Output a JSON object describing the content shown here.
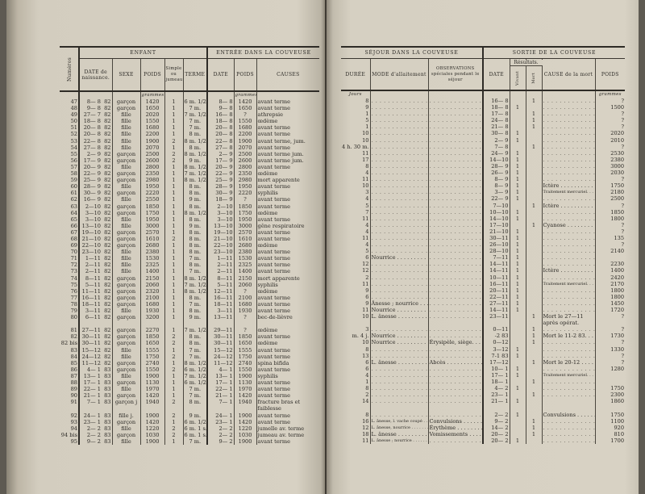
{
  "left_table": {
    "group_headers": {
      "enfant": "ENFANT",
      "entree": "ENTRÉE DANS LA COUVEUSE"
    },
    "columns": {
      "numero": "Numéros",
      "date_naissance": "DATE de naissance.",
      "sexe": "SEXE",
      "poids": "POIDS",
      "simple_jumeau": "Simple ou jumeau",
      "terme": "TERME",
      "date_entree": "DATE",
      "poids_entree": "POIDS",
      "causes": "CAUSES"
    },
    "units": {
      "poids": "grammes",
      "poids_entree": "grammes"
    },
    "rows": [
      [
        "47",
        "8— 8",
        "82",
        "garçon",
        "1420",
        "1",
        "6 m. 1/2",
        "8— 8",
        "1420",
        "avant terme"
      ],
      [
        "48",
        "9— 8",
        "82",
        "garçon",
        "1650",
        "1",
        "7 m.",
        "9— 8",
        "1650",
        "avant terme"
      ],
      [
        "49",
        "27— 7",
        "82",
        "fille",
        "2020",
        "1",
        "7 m. 1/2",
        "16— 8",
        "?",
        "athrepsie"
      ],
      [
        "50",
        "18— 8",
        "82",
        "fille",
        "1550",
        "1",
        "7 m.",
        "18— 8",
        "1550",
        "œdème"
      ],
      [
        "51",
        "20— 8",
        "82",
        "fille",
        "1680",
        "1",
        "7 m.",
        "20— 8",
        "1680",
        "avant terme"
      ],
      [
        "52",
        "20— 8",
        "82",
        "fille",
        "2200",
        "1",
        "8 m.",
        "20— 8",
        "2200",
        "avant terme"
      ],
      [
        "53",
        "22— 8",
        "82",
        "fille",
        "1900",
        "2",
        "8 m. 1/2",
        "22— 8",
        "1900",
        "avant terme, jum."
      ],
      [
        "54",
        "27— 8",
        "82",
        "fille",
        "2070",
        "1",
        "8 m.",
        "27— 8",
        "2070",
        "avant terme"
      ],
      [
        "55",
        "2— 9",
        "82",
        "garçon",
        "2500",
        "2",
        "8 m. 1/2",
        "2— 9",
        "2500",
        "avant terme jum."
      ],
      [
        "56",
        "17— 9",
        "82",
        "garçon",
        "2600",
        "2",
        "9 m.",
        "17— 9",
        "2600",
        "avant terme jum."
      ],
      [
        "57",
        "20— 9",
        "82",
        "fille",
        "2800",
        "1",
        "8 m. 1/2",
        "20— 9",
        "2800",
        "avant terme"
      ],
      [
        "58",
        "22— 9",
        "82",
        "garçon",
        "2350",
        "1",
        "7 m. 1/2",
        "22— 9",
        "2350",
        "œdème"
      ],
      [
        "59",
        "25— 9",
        "82",
        "garçon",
        "2980",
        "1",
        "8 m. 1/2",
        "25— 9",
        "2980",
        "mort apparente"
      ],
      [
        "60",
        "28— 9",
        "82",
        "fille",
        "1950",
        "1",
        "8 m.",
        "28— 9",
        "1950",
        "avant terme"
      ],
      [
        "61",
        "30— 9",
        "82",
        "garçon",
        "2220",
        "1",
        "8 m.",
        "30— 9",
        "2220",
        "syphilis"
      ],
      [
        "62",
        "16— 9",
        "82",
        "fille",
        "2550",
        "1",
        "9 m.",
        "18— 9",
        "?",
        "avant terme"
      ],
      [
        "63",
        "2—10",
        "82",
        "garçon",
        "1850",
        "1",
        "8 m.",
        "2—10",
        "1850",
        "avant terme"
      ],
      [
        "64",
        "3—10",
        "82",
        "garçon",
        "1750",
        "1",
        "8 m. 1/2",
        "3—10",
        "1750",
        "œdème"
      ],
      [
        "65",
        "3—10",
        "82",
        "fille",
        "1950",
        "1",
        "8 m.",
        "3—10",
        "1950",
        "avant terme"
      ],
      [
        "66",
        "13—10",
        "82",
        "fille",
        "3000",
        "1",
        "9 m.",
        "13—10",
        "3000",
        "gêne respiratoire"
      ],
      [
        "67",
        "19—10",
        "82",
        "garçon",
        "2570",
        "1",
        "8 m.",
        "19—10",
        "2570",
        "avant terme"
      ],
      [
        "68",
        "21—10",
        "82",
        "garçon",
        "1610",
        "2",
        "8 m.",
        "21—10",
        "1610",
        "avant terme"
      ],
      [
        "69",
        "22—10",
        "82",
        "garçon",
        "2680",
        "1",
        "8 m.",
        "22—10",
        "2680",
        "œdème"
      ],
      [
        "70",
        "23—10",
        "82",
        "fille",
        "2380",
        "1",
        "8 m.",
        "23—10",
        "2380",
        "avant terme"
      ],
      [
        "71",
        "1—11",
        "82",
        "fille",
        "1530",
        "1",
        "7 m.",
        "1—11",
        "1530",
        "avant terme"
      ],
      [
        "72",
        "2—11",
        "82",
        "fille",
        "2325",
        "1",
        "8 m.",
        "2—11",
        "2325",
        "avant terme"
      ],
      [
        "73",
        "2—11",
        "82",
        "fille",
        "1400",
        "1",
        "7 m.",
        "2—11",
        "1400",
        "avant terme"
      ],
      [
        "74",
        "8—11",
        "82",
        "garçon",
        "2150",
        "1",
        "8 m. 1/2",
        "8—11",
        "2150",
        "mort apparente"
      ],
      [
        "75",
        "5—11",
        "82",
        "garçon",
        "2060",
        "1",
        "7 m. 1/2",
        "5—11",
        "2060",
        "syphilis"
      ],
      [
        "76",
        "11—11",
        "82",
        "garçon",
        "2320",
        "1",
        "8 m. 1/2",
        "12—11",
        "?",
        "œdème"
      ],
      [
        "77",
        "16—11",
        "82",
        "garçon",
        "2100",
        "1",
        "8 m.",
        "16—11",
        "2100",
        "avant terme"
      ],
      [
        "78",
        "18—11",
        "82",
        "garçon",
        "1680",
        "1",
        "7 m.",
        "18—11",
        "1680",
        "avant terme"
      ],
      [
        "79",
        "3—11",
        "82",
        "fille",
        "1930",
        "1",
        "8 m.",
        "3—11",
        "1930",
        "avant terme"
      ],
      [
        "80",
        "6—11",
        "82",
        "garçon",
        "3200",
        "1",
        "9 m.",
        "13—11",
        "?",
        "bec-de-lièvre"
      ],
      [
        "81",
        "27—11",
        "82",
        "garçon",
        "2270",
        "1",
        "7 m. 1/2",
        "29—11",
        "?",
        "œdème"
      ],
      [
        "82",
        "30—11",
        "82",
        "garçon",
        "1850",
        "2",
        "8 m.",
        "30—11",
        "1850",
        "avant terme"
      ],
      [
        "82 bis",
        "30—11",
        "82",
        "garçon",
        "1650",
        "2",
        "8 m.",
        "30—11",
        "1650",
        "œdème"
      ],
      [
        "83",
        "15—12",
        "82",
        "fille",
        "1555",
        "1",
        "7 m.",
        "15—12",
        "1555",
        "avant terme"
      ],
      [
        "84",
        "24—12",
        "82",
        "fille",
        "1750",
        "2",
        "7 m.",
        "24—12",
        "1750",
        "avant terme"
      ],
      [
        "85",
        "11—12",
        "82",
        "garçon",
        "2740",
        "1",
        "8 m. 1/2",
        "11—12",
        "2740",
        "spina bifida"
      ],
      [
        "86",
        "4— 1",
        "83",
        "garçon",
        "1550",
        "2",
        "6 m. 1/2",
        "4— 1",
        "1550",
        "avant terme"
      ],
      [
        "87",
        "13— 1",
        "83",
        "fille",
        "1900",
        "1",
        "7 m. 1/2",
        "13— 1",
        "1900",
        "syphilis"
      ],
      [
        "88",
        "17— 1",
        "83",
        "garçon",
        "1130",
        "1",
        "6 m. 1/2",
        "17— 1",
        "1130",
        "avant terme"
      ],
      [
        "89",
        "22— 1",
        "83",
        "fille",
        "1970",
        "1",
        "7 m.",
        "22— 1",
        "1970",
        "avant terme"
      ],
      [
        "90",
        "21— 1",
        "83",
        "garçon",
        "1420",
        "1",
        "7 m.",
        "21— 1",
        "1420",
        "avant terme"
      ],
      [
        "91",
        "7— 1",
        "83",
        "garçon j",
        "1940",
        "2",
        "8 m.",
        "7— 1",
        "1940",
        "fracture bras et faiblesse"
      ],
      [
        "92",
        "24— 1",
        "83",
        "fille j.",
        "1900",
        "2",
        "9 m.",
        "24— 1",
        "1900",
        "avant terme"
      ],
      [
        "93",
        "23— 1",
        "83",
        "garçon",
        "1420",
        "1",
        "6 m. 1/2",
        "23— 1",
        "1420",
        "avant terme"
      ],
      [
        "94",
        "2— 2",
        "83",
        "fille",
        "1220",
        "2",
        "6 m. 1 s.",
        "2— 2",
        "1220",
        "jumelle av. terme"
      ],
      [
        "94 bis",
        "2— 2",
        "83",
        "garçon",
        "1030",
        "2",
        "6 m. 1 s.",
        "2— 2",
        "1030",
        "jumeau av. terme"
      ],
      [
        "95",
        "9— 2",
        "83",
        "fille",
        "1900",
        "1",
        "7 m.",
        "9— 2",
        "1900",
        "avant terme"
      ]
    ]
  },
  "right_table": {
    "group_headers": {
      "sejour": "SÉJOUR DANS LA COUVEUSE",
      "sortie": "SORTIE DE LA COUVEUSE",
      "resultats": "Résultats."
    },
    "columns": {
      "duree": "DURÉE",
      "mode": "MODE d'allaitement",
      "observations": "OBSERVATIONS spéciales pendant le séjour",
      "date": "DATE",
      "vivant": "Vivant",
      "mort": "Mort",
      "cause": "CAUSE de la mort",
      "poids": "POIDS"
    },
    "units": {
      "duree": "Jours",
      "poids": "grammes"
    },
    "rows": [
      [
        "8",
        "",
        "",
        "16— 8",
        "",
        "1",
        "",
        "?"
      ],
      [
        "9",
        "",
        "",
        "18— 8",
        "1",
        "",
        "",
        "1500"
      ],
      [
        "1",
        "",
        "",
        "17— 8",
        "",
        "1",
        "",
        "?"
      ],
      [
        "5",
        "",
        "",
        "24— 8",
        "",
        "1",
        "",
        "?"
      ],
      [
        "1",
        "",
        "",
        "21— 8",
        "",
        "1",
        "",
        "?"
      ],
      [
        "10",
        "",
        "",
        "30— 8",
        "1",
        "",
        "",
        "2020"
      ],
      [
        "10",
        "",
        "",
        "2— 9",
        "1",
        "",
        "",
        "2010"
      ],
      [
        "4 h. 30 m.",
        "",
        "",
        "7— 8",
        "",
        "1",
        "",
        "?"
      ],
      [
        "11",
        "",
        "",
        "24— 9",
        "1",
        "",
        "",
        "2530"
      ],
      [
        "17",
        "",
        "",
        "14—10",
        "1",
        "",
        "",
        "2380"
      ],
      [
        "8",
        "",
        "",
        "28— 9",
        "1",
        "",
        "",
        "3000"
      ],
      [
        "4",
        "",
        "",
        "26— 9",
        "1",
        "",
        "",
        "2030"
      ],
      [
        "11",
        "",
        "",
        "8— 9",
        "1",
        "",
        "",
        "?"
      ],
      [
        "10",
        "",
        "",
        "8— 9",
        "1",
        "",
        "Ictère",
        "1750"
      ],
      [
        "3",
        "",
        "",
        "3— 9",
        "1",
        "",
        "Traitement mercuriel.",
        "2180"
      ],
      [
        "4",
        "",
        "",
        "22— 9",
        "1",
        "",
        "",
        "2500"
      ],
      [
        "5",
        "",
        "",
        "7—10",
        "",
        "1",
        "Ictère",
        "?"
      ],
      [
        "7",
        "",
        "",
        "10—10",
        "1",
        "",
        "",
        "1850"
      ],
      [
        "11",
        "",
        "",
        "14—10",
        "1",
        "",
        "",
        "1800"
      ],
      [
        "4",
        "",
        "",
        "17—10",
        "",
        "1",
        "Cyanose",
        "?"
      ],
      [
        "4",
        "",
        "",
        "21—10",
        "1",
        "",
        "",
        "?"
      ],
      [
        "11",
        "",
        "",
        "30—11",
        "1",
        "",
        "",
        "135"
      ],
      [
        "4",
        "",
        "",
        "26—10",
        "1",
        "",
        "",
        "?"
      ],
      [
        "5",
        "",
        "",
        "28—10",
        "1",
        "",
        "",
        "2140"
      ],
      [
        "6",
        "Nourrice",
        "",
        "7—11",
        "1",
        "",
        "",
        ""
      ],
      [
        "12",
        "",
        "",
        "14—11",
        "1",
        "",
        "",
        "2230"
      ],
      [
        "12",
        "",
        "",
        "14—11",
        "1",
        "",
        "Ictère",
        "1400"
      ],
      [
        "2",
        "",
        "",
        "10—11",
        "1",
        "",
        "",
        "2420"
      ],
      [
        "11",
        "",
        "",
        "16—11",
        "1",
        "",
        "Traitement mercuriel.",
        "2170"
      ],
      [
        "9",
        "",
        "",
        "20—11",
        "1",
        "",
        "",
        "1800"
      ],
      [
        "6",
        "",
        "",
        "22—11",
        "1",
        "",
        "",
        "1800"
      ],
      [
        "9",
        "Ânesse ; nourrice",
        "",
        "27—11",
        "1",
        "",
        "",
        "1450"
      ],
      [
        "11",
        "Nourrice",
        "",
        "14—11",
        "1",
        "",
        "",
        "1720"
      ],
      [
        "10",
        "L. ânesse",
        "",
        "23—11",
        "",
        "1",
        "Mort le 27—11 après opérat.",
        "?"
      ],
      [
        "3",
        "",
        "",
        "0—11",
        "",
        "1",
        "",
        "?"
      ],
      [
        "m. 4 j.",
        "Nourrice",
        "",
        "-2 83",
        "",
        "1",
        "Mort le 11-2 83.",
        "1730"
      ],
      [
        "10",
        "Nourrice",
        "Érysipèle, siège.",
        "0—12",
        "",
        "1",
        "",
        "?"
      ],
      [
        "8",
        "",
        "",
        "3—12",
        "1",
        "",
        "",
        "1330"
      ],
      [
        "13",
        "",
        "",
        "7-1 83",
        "1",
        "",
        "",
        "?"
      ],
      [
        "6",
        "L. ânesse",
        "Abcès",
        "17—12",
        "",
        "1",
        "Mort le 20-12",
        "?"
      ],
      [
        "6",
        "",
        "",
        "10— 1",
        "1",
        "",
        "",
        "1280"
      ],
      [
        "4",
        "",
        "",
        "17— 1",
        "1",
        "",
        "Traitement mercuriel.",
        ""
      ],
      [
        "1",
        "",
        "",
        "18— 1",
        "",
        "1",
        "",
        ""
      ],
      [
        "8",
        "",
        "",
        "4— 2",
        "1",
        "",
        "",
        "1750"
      ],
      [
        "2",
        "",
        "",
        "23— 1",
        "",
        "1",
        "",
        "2300"
      ],
      [
        "14",
        "",
        "",
        "21— 1",
        "1",
        "",
        "",
        "1860"
      ],
      [
        "8",
        "",
        "",
        "2— 2",
        "1",
        "",
        "Convulsions",
        "1750"
      ],
      [
        "16",
        "L. ânesse, l. vache coupé",
        "Convulsions",
        "9— 2",
        "",
        "1",
        "",
        "1100"
      ],
      [
        "12",
        "L. ânesse, nourrice",
        "Érythème",
        "14— 2",
        "",
        "1",
        "",
        "920"
      ],
      [
        "18",
        "L. ânesse",
        "Vomissements",
        "20— 2",
        "",
        "1",
        "",
        "810"
      ],
      [
        "11",
        "L. ânesse ; nourrice",
        "",
        "20— 2",
        "1",
        "",
        "",
        "1700"
      ]
    ]
  },
  "colors": {
    "paper": "#d6d0c2",
    "ink": "#2c2a26",
    "binding": "#5e5a52"
  }
}
